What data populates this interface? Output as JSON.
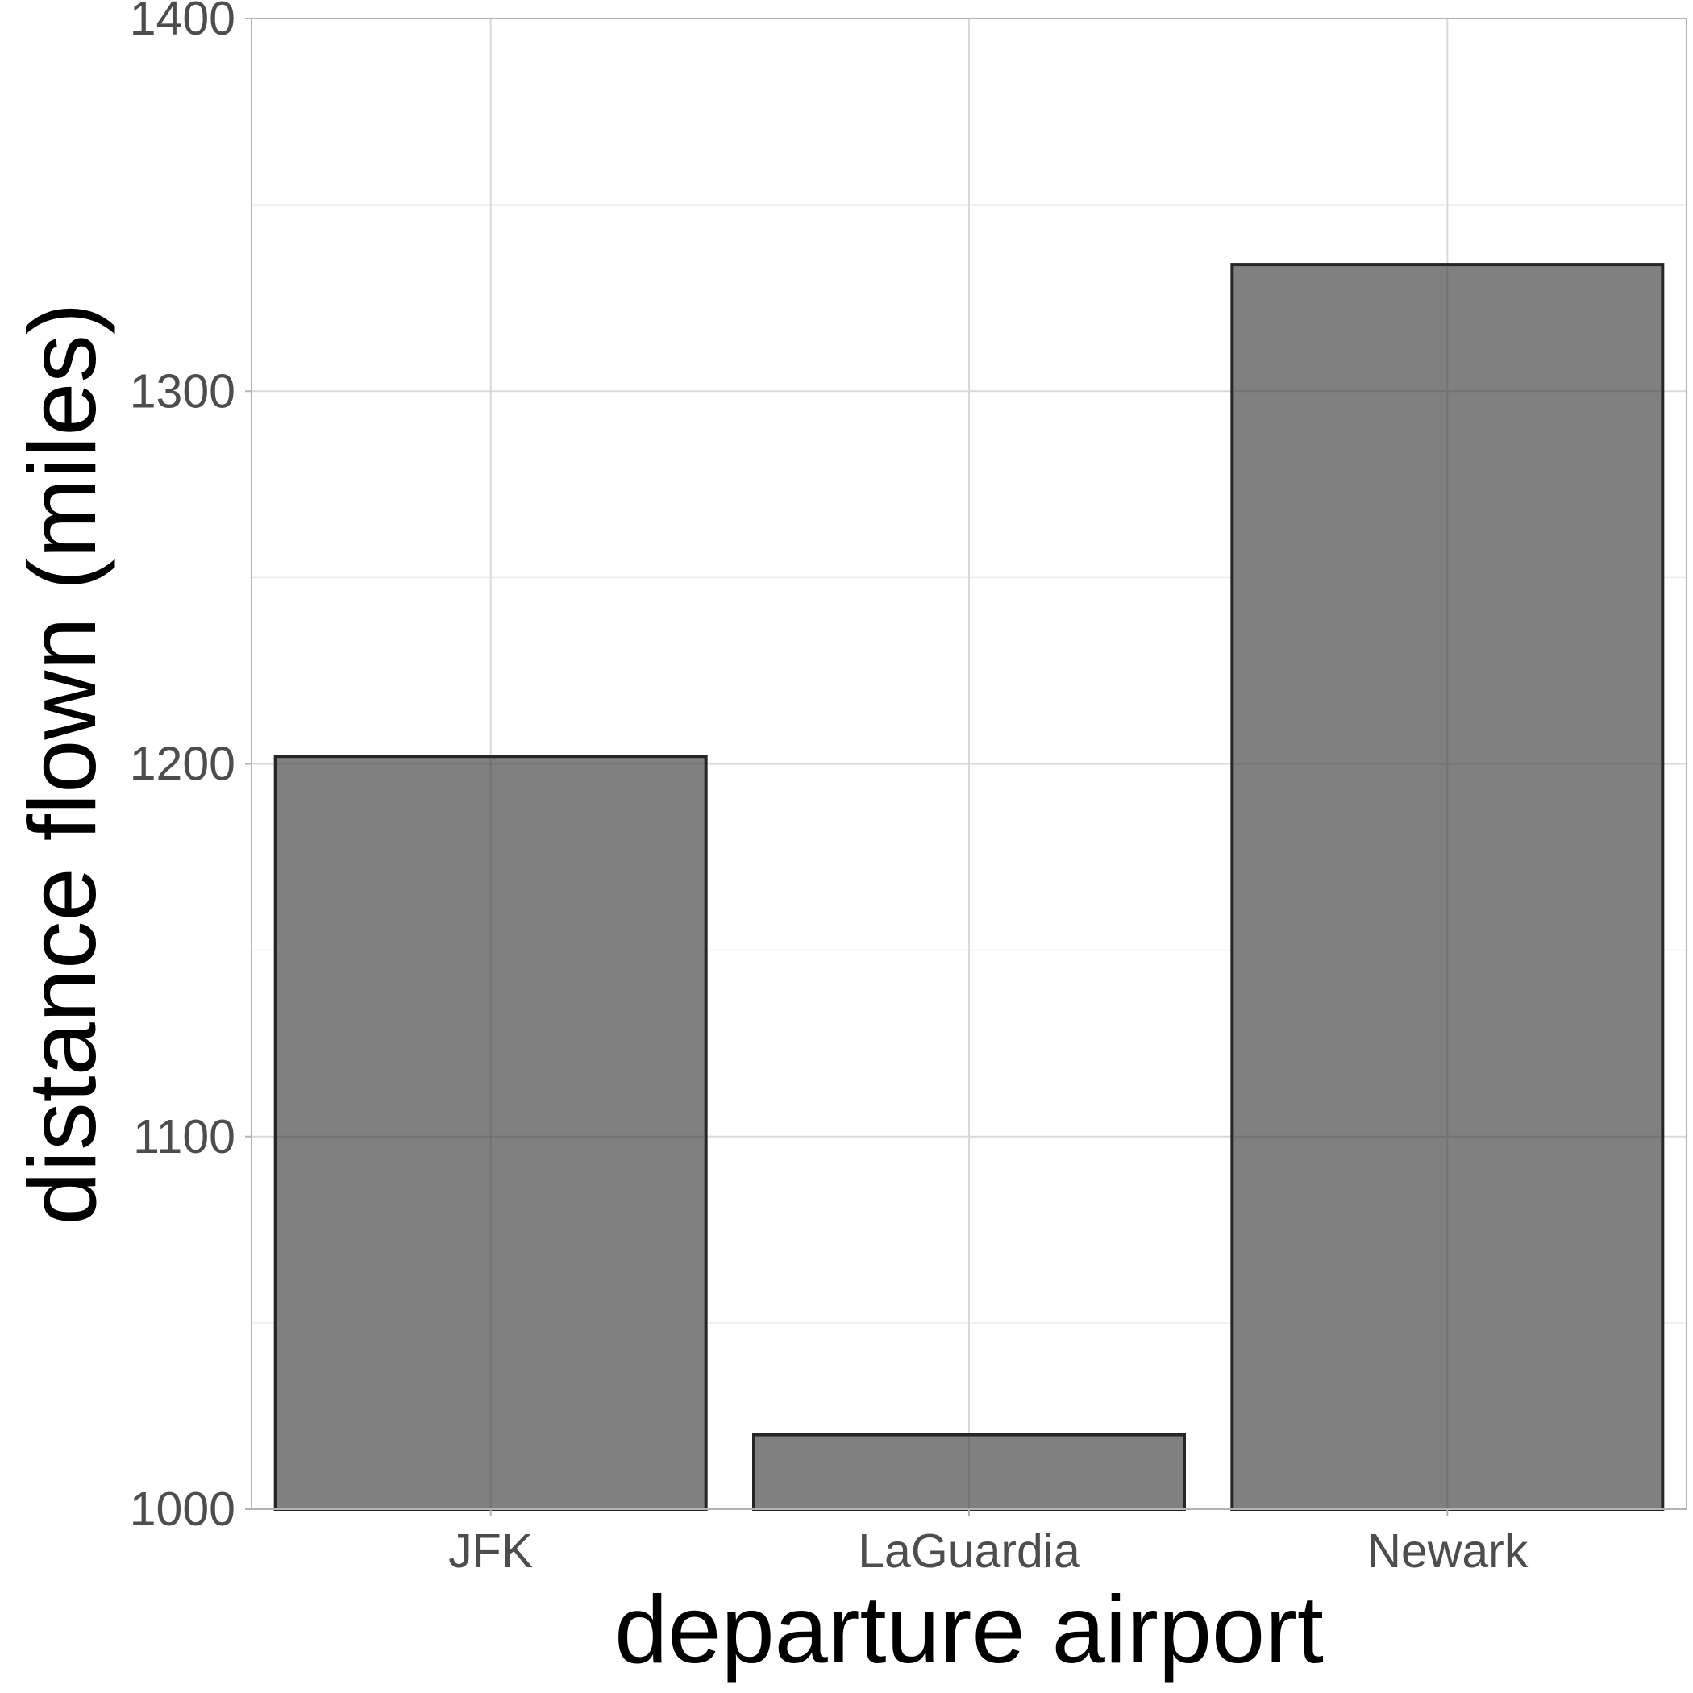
{
  "chart_data": {
    "type": "bar",
    "title": "",
    "xlabel": "departure airport",
    "ylabel": "distance flown (miles)",
    "categories": [
      "JFK",
      "LaGuardia",
      "Newark"
    ],
    "values": [
      1202,
      1020,
      1334
    ],
    "ylim": [
      1000,
      1400
    ],
    "y_ticks": [
      1000,
      1100,
      1200,
      1300,
      1400
    ],
    "y_tick_labels": [
      "1000",
      "1100",
      "1200",
      "1300",
      "1400"
    ],
    "grid": true,
    "legend": "none",
    "colors": {
      "bar_fill": "#808080",
      "bar_outline": "#262626",
      "grid_major": "#d9d9d9",
      "grid_minor": "#ececec",
      "panel_border": "#b3b3b3",
      "tick_text": "#4d4d4d",
      "axis_title": "#000000"
    }
  }
}
